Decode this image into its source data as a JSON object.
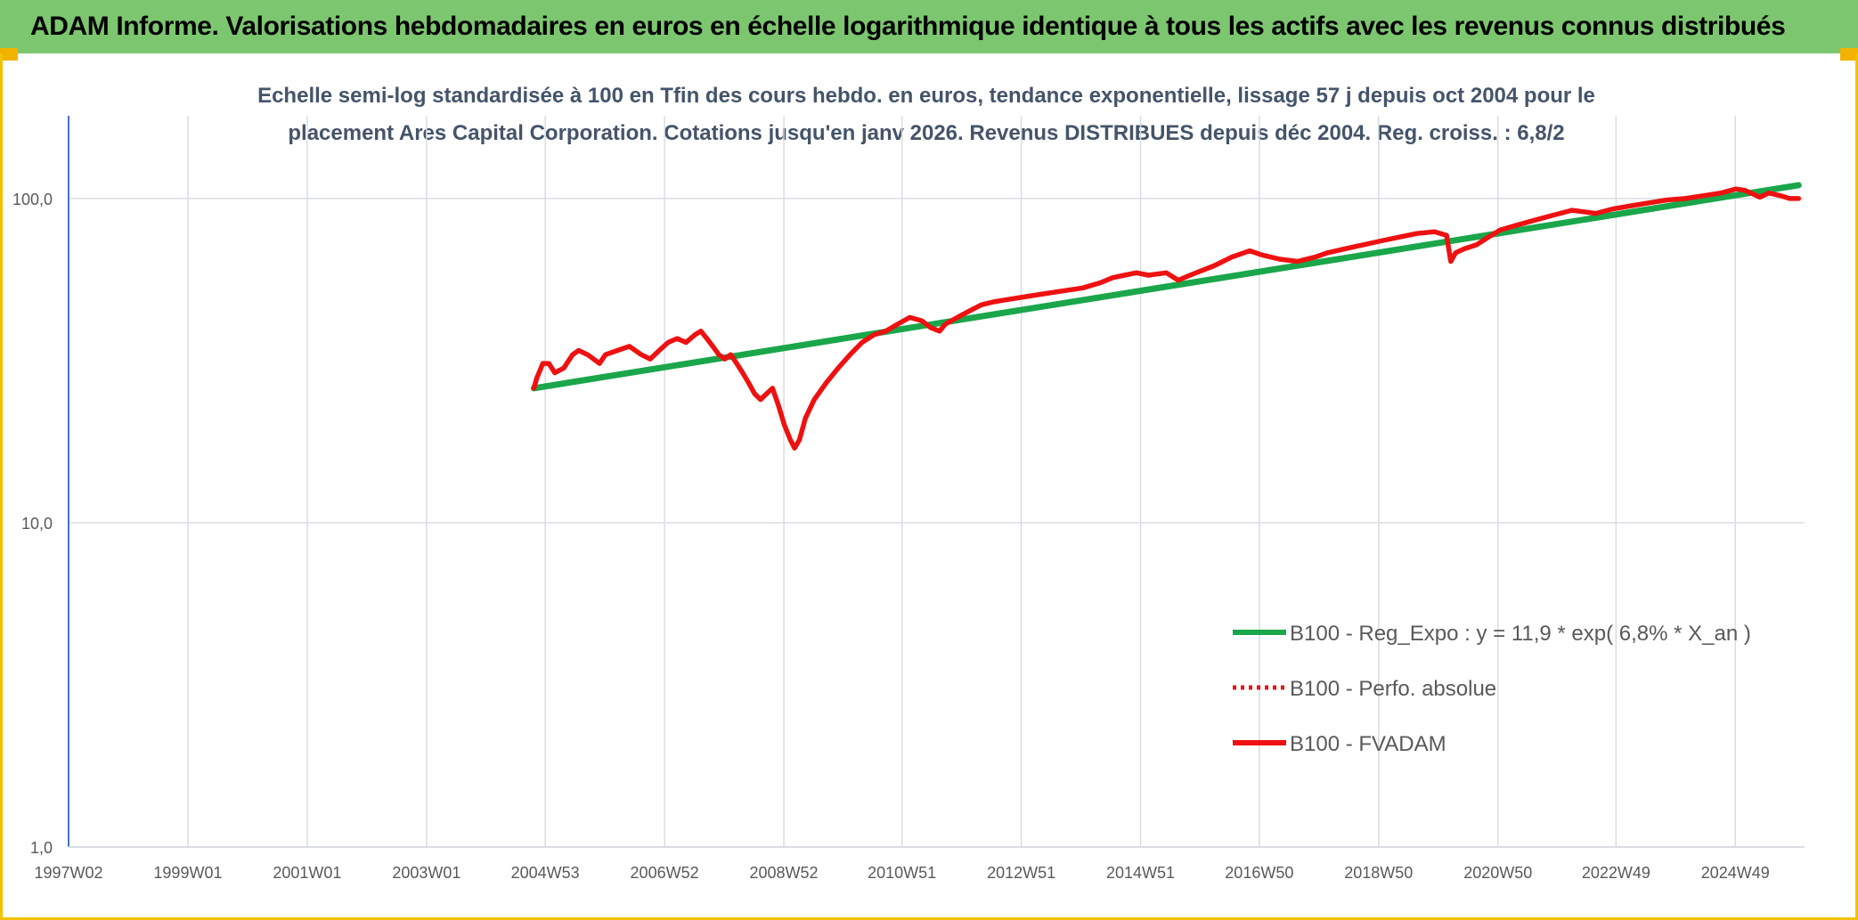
{
  "banner": {
    "title": "ADAM Informe. Valorisations hebdomadaires en euros en échelle logarithmique identique à tous les actifs avec les revenus connus distribués"
  },
  "colors": {
    "banner_bg": "#7cc66f",
    "frame": "#f2c200",
    "regression": "#1aa64a",
    "series": "#ee1111",
    "axis": "#4472c4",
    "grid": "#d9dde3"
  },
  "chart_data": {
    "type": "line",
    "title_lines": [
      "Echelle semi-log standardisée à 100 en Tfin des cours hebdo. en euros, tendance exponentielle, lissage 57 j depuis oct 2004 pour le",
      "placement Ares Capital Corporation. Cotations jusqu'en janv 2026. Revenus DISTRIBUES depuis déc 2004. Reg. croiss. : 6,8/2"
    ],
    "y_scale": "log",
    "ylim": [
      1,
      180
    ],
    "y_ticks": [
      {
        "value": 1,
        "label": "1,0"
      },
      {
        "value": 10,
        "label": "10,0"
      },
      {
        "value": 100,
        "label": "100,0"
      }
    ],
    "x_range_years": [
      1997.0,
      2026.1
    ],
    "x_ticks": [
      {
        "year": 1997.0,
        "label": "1997W02"
      },
      {
        "year": 1999.0,
        "label": "1999W01"
      },
      {
        "year": 2001.0,
        "label": "2001W01"
      },
      {
        "year": 2003.0,
        "label": "2003W01"
      },
      {
        "year": 2004.99,
        "label": "2004W53"
      },
      {
        "year": 2006.99,
        "label": "2006W52"
      },
      {
        "year": 2008.99,
        "label": "2008W52"
      },
      {
        "year": 2010.97,
        "label": "2010W51"
      },
      {
        "year": 2012.97,
        "label": "2012W51"
      },
      {
        "year": 2014.97,
        "label": "2014W51"
      },
      {
        "year": 2016.96,
        "label": "2016W50"
      },
      {
        "year": 2018.96,
        "label": "2018W50"
      },
      {
        "year": 2020.96,
        "label": "2020W50"
      },
      {
        "year": 2022.94,
        "label": "2022W49"
      },
      {
        "year": 2024.94,
        "label": "2024W49"
      }
    ],
    "legend": {
      "position": "bottom-right",
      "entries": [
        {
          "label": "B100 - Reg_Expo : y = 11,9 * exp( 6,8% *  X_an )",
          "style": "solid",
          "color": "#1aa64a"
        },
        {
          "label": "B100 - Perfo. absolue",
          "style": "dotted",
          "color": "#ee1111"
        },
        {
          "label": "B100 - FVADAM",
          "style": "solid",
          "color": "#ee1111"
        }
      ]
    },
    "series": [
      {
        "name": "B100 - Reg_Expo : y = 11,9 * exp( 6,8% *  X_an )",
        "color": "#1aa64a",
        "x": [
          2004.8,
          2026.0
        ],
        "y": [
          26,
          110
        ]
      },
      {
        "name": "B100 - FVADAM",
        "color": "#ee1111",
        "x": [
          2004.8,
          2004.85,
          2004.95,
          2005.05,
          2005.15,
          2005.3,
          2005.45,
          2005.55,
          2005.7,
          2005.9,
          2006.0,
          2006.2,
          2006.4,
          2006.6,
          2006.75,
          2006.9,
          2007.05,
          2007.2,
          2007.35,
          2007.5,
          2007.6,
          2007.7,
          2007.8,
          2007.9,
          2008.0,
          2008.1,
          2008.2,
          2008.3,
          2008.4,
          2008.5,
          2008.6,
          2008.7,
          2008.8,
          2008.9,
          2009.0,
          2009.1,
          2009.17,
          2009.25,
          2009.35,
          2009.5,
          2009.7,
          2009.9,
          2010.1,
          2010.3,
          2010.5,
          2010.7,
          2010.9,
          2011.1,
          2011.3,
          2011.45,
          2011.6,
          2011.7,
          2011.9,
          2012.1,
          2012.3,
          2012.5,
          2012.8,
          2013.1,
          2013.4,
          2013.7,
          2014.0,
          2014.3,
          2014.5,
          2014.7,
          2014.9,
          2015.1,
          2015.4,
          2015.6,
          2015.8,
          2016.0,
          2016.2,
          2016.5,
          2016.8,
          2017.0,
          2017.3,
          2017.6,
          2017.9,
          2018.1,
          2018.4,
          2018.7,
          2019.0,
          2019.3,
          2019.6,
          2019.9,
          2020.1,
          2020.17,
          2020.25,
          2020.4,
          2020.6,
          2020.8,
          2021.0,
          2021.3,
          2021.6,
          2021.9,
          2022.2,
          2022.4,
          2022.6,
          2022.9,
          2023.2,
          2023.5,
          2023.8,
          2024.1,
          2024.4,
          2024.7,
          2024.95,
          2025.1,
          2025.2,
          2025.35,
          2025.5,
          2025.7,
          2025.85,
          2026.0
        ],
        "y": [
          26,
          28,
          31,
          31,
          29,
          30,
          33,
          34,
          33,
          31,
          33,
          34,
          35,
          33,
          32,
          34,
          36,
          37,
          36,
          38,
          39,
          37,
          35,
          33,
          32,
          33,
          31,
          29,
          27,
          25,
          24,
          25,
          26,
          23,
          20,
          18,
          17,
          18,
          21,
          24,
          27,
          30,
          33,
          36,
          38,
          39,
          41,
          43,
          42,
          40,
          39,
          41,
          43,
          45,
          47,
          48,
          49,
          50,
          51,
          52,
          53,
          55,
          57,
          58,
          59,
          58,
          59,
          56,
          58,
          60,
          62,
          66,
          69,
          67,
          65,
          64,
          66,
          68,
          70,
          72,
          74,
          76,
          78,
          79,
          77,
          64,
          68,
          70,
          72,
          76,
          80,
          83,
          86,
          89,
          92,
          91,
          90,
          93,
          95,
          97,
          99,
          100,
          102,
          104,
          107,
          106,
          104,
          101,
          104,
          102,
          100,
          100
        ]
      }
    ]
  }
}
